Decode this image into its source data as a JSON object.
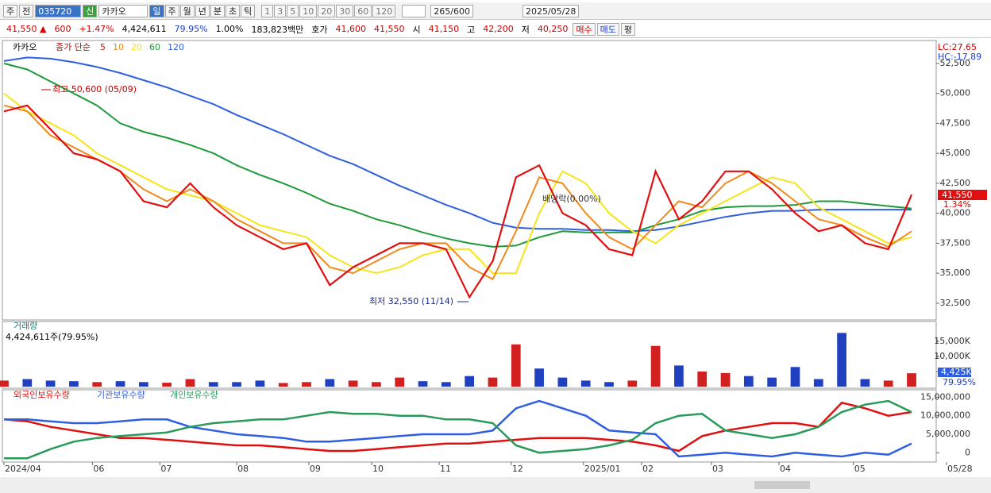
{
  "toolbar": {
    "period": "주",
    "prev": "전",
    "code": "035720",
    "credit": "신",
    "name": "카카오",
    "intervals": [
      "일",
      "주",
      "월",
      "년",
      "분",
      "초",
      "틱"
    ],
    "counts": [
      "1",
      "3",
      "5",
      "10",
      "20",
      "30",
      "60",
      "120"
    ],
    "bars": "265",
    "bars_max": "/600",
    "date": "2025/05/28"
  },
  "info_bar": {
    "price": "41,550 ▲",
    "change": "600",
    "change_rate": "+1.47%",
    "volume": "4,424,611",
    "volume_rate": "79.95%",
    "rate2": "1.00%",
    "amount": "183,823백만",
    "quote_label": "호가",
    "ask": "41,600",
    "bid": "41,550",
    "open_label": "시",
    "open": "41,150",
    "high_label": "고",
    "high": "42,200",
    "low_label": "저",
    "low": "40,250",
    "buy": "매수",
    "sell": "매도",
    "avg": "평"
  },
  "chart_data": [
    {
      "type": "line",
      "title": "카카오",
      "subtitle": "종가 단순",
      "ylim": [
        31100,
        54150
      ],
      "yticks": [
        {
          "value": 32500,
          "label": "32,500"
        },
        {
          "value": 35000,
          "label": "35,000"
        },
        {
          "value": 37500,
          "label": "37,500"
        },
        {
          "value": 40000,
          "label": "40,000"
        },
        {
          "value": 42500,
          "label": "42,500"
        },
        {
          "value": 45000,
          "label": "45,000"
        },
        {
          "value": 47500,
          "label": "47,500"
        },
        {
          "value": 50000,
          "label": "50,000"
        },
        {
          "value": 52500,
          "label": "52,500"
        }
      ],
      "series": [
        {
          "name": "5",
          "color": "#e01010",
          "values": [
            48500,
            49000,
            47000,
            45000,
            44500,
            43500,
            41000,
            40500,
            42500,
            40500,
            39000,
            38000,
            37000,
            37500,
            34000,
            35500,
            36500,
            37500,
            37500,
            37000,
            33000,
            36000,
            43000,
            44000,
            40000,
            39000,
            37000,
            36500,
            43500,
            39500,
            41000,
            43500,
            43500,
            42000,
            40000,
            38500,
            39000,
            37500,
            37000,
            41550
          ]
        },
        {
          "name": "10",
          "color": "#f08a1c",
          "values": [
            49000,
            48500,
            46500,
            45500,
            44500,
            43500,
            42000,
            41000,
            42000,
            41000,
            39500,
            38500,
            37500,
            37500,
            35500,
            35000,
            36000,
            37000,
            37500,
            37500,
            35500,
            34500,
            38500,
            43000,
            42500,
            40000,
            38000,
            37000,
            39000,
            41000,
            40500,
            42500,
            43500,
            42500,
            41000,
            39500,
            39000,
            38000,
            37200,
            38500
          ]
        },
        {
          "name": "20",
          "color": "#f5e51a",
          "values": [
            50000,
            48500,
            47500,
            46500,
            45000,
            44000,
            43000,
            42000,
            41500,
            41000,
            40000,
            39000,
            38500,
            38000,
            36500,
            35500,
            35000,
            35500,
            36500,
            37000,
            37000,
            35000,
            35000,
            40000,
            43500,
            42500,
            40000,
            38500,
            37500,
            39000,
            40000,
            41000,
            42000,
            43000,
            42500,
            40500,
            39500,
            38500,
            37500,
            38000
          ]
        },
        {
          "name": "60",
          "color": "#1f9a3a",
          "values": [
            52500,
            52000,
            51000,
            50000,
            49000,
            47500,
            46800,
            46300,
            45700,
            45000,
            44000,
            43200,
            42500,
            41700,
            40800,
            40200,
            39500,
            39000,
            38400,
            37900,
            37500,
            37200,
            37300,
            38000,
            38500,
            38400,
            38400,
            38400,
            39000,
            39500,
            40200,
            40500,
            40600,
            40600,
            40700,
            41000,
            41000,
            40800,
            40600,
            40400
          ]
        },
        {
          "name": "120",
          "color": "#2f5fe0",
          "values": [
            52700,
            53000,
            52900,
            52600,
            52200,
            51700,
            51100,
            50500,
            49800,
            49100,
            48200,
            47400,
            46600,
            45700,
            44800,
            44100,
            43200,
            42300,
            41500,
            40700,
            40000,
            39200,
            38800,
            38700,
            38700,
            38600,
            38600,
            38500,
            38600,
            38900,
            39300,
            39700,
            40000,
            40200,
            40200,
            40300,
            40300,
            40300,
            40300,
            40300
          ]
        }
      ],
      "annotations": [
        "최고 50,600 (05/09)",
        "최저 32,550 (11/14)",
        "배당락(0.00%)"
      ],
      "lc": "LC:27.65",
      "hc": "HC:-17.89",
      "last_price": "41,550",
      "last_change": "1.34%"
    },
    {
      "type": "bar",
      "title": "거래량",
      "subtitle": "4,424,611주(79.95%)",
      "ylim": [
        0,
        18000
      ],
      "yticks": [
        {
          "value": 5000,
          "label": "5,000K"
        },
        {
          "value": 10000,
          "label": "10,000K"
        },
        {
          "value": 15000,
          "label": "15,000K"
        }
      ],
      "values": [
        2000,
        2500,
        2000,
        1800,
        1500,
        1800,
        1500,
        1300,
        2500,
        1500,
        1500,
        2000,
        1200,
        1500,
        2500,
        2000,
        1500,
        3000,
        1800,
        1500,
        3500,
        3000,
        14000,
        6000,
        3000,
        2000,
        1500,
        2000,
        13500,
        7000,
        5000,
        4500,
        3500,
        3000,
        6500,
        2500,
        17800,
        2500,
        2000,
        4425
      ],
      "colors": [
        "#d02020",
        "#2040c0",
        "#2040c0",
        "#2040c0",
        "#d02020",
        "#2040c0",
        "#2040c0",
        "#d02020",
        "#d02020",
        "#2040c0",
        "#2040c0",
        "#2040c0",
        "#d02020",
        "#d02020",
        "#2040c0",
        "#d02020",
        "#d02020",
        "#d02020",
        "#2040c0",
        "#2040c0",
        "#2040c0",
        "#d02020",
        "#d02020",
        "#2040c0",
        "#2040c0",
        "#2040c0",
        "#2040c0",
        "#d02020",
        "#d02020",
        "#2040c0",
        "#d02020",
        "#d02020",
        "#2040c0",
        "#2040c0",
        "#2040c0",
        "#2040c0",
        "#2040c0",
        "#2040c0",
        "#d02020",
        "#d02020"
      ],
      "last_value": "4,425K",
      "last_rate": "79.95%"
    },
    {
      "type": "line",
      "ylim": [
        -2500000,
        16700000
      ],
      "yticks": [
        0,
        {
          "value": 5000000,
          "label": "5,000,000"
        },
        {
          "value": 10000000,
          "label": "10,000,000"
        },
        {
          "value": 15000000,
          "label": "15,000,000"
        }
      ],
      "xlim": [
        0,
        39
      ],
      "xticks": [
        {
          "value": 0,
          "label": "2024/04"
        },
        {
          "value": 3.8,
          "label": "06"
        },
        {
          "value": 6.7,
          "label": "07"
        },
        {
          "value": 10,
          "label": "08"
        },
        {
          "value": 13.1,
          "label": "09"
        },
        {
          "value": 15.8,
          "label": "10"
        },
        {
          "value": 18.7,
          "label": "11"
        },
        {
          "value": 21.8,
          "label": "12"
        },
        {
          "value": 24.9,
          "label": "2025/01"
        },
        {
          "value": 27.4,
          "label": "02"
        },
        {
          "value": 30.4,
          "label": "03"
        },
        {
          "value": 33.3,
          "label": "04"
        },
        {
          "value": 36.5,
          "label": "05"
        },
        {
          "value": 40.5,
          "label": "05/28"
        }
      ],
      "series": [
        {
          "name": "외국인보유수량",
          "color": "#e01010",
          "values": [
            9000000,
            8500000,
            7000000,
            6000000,
            5000000,
            4000000,
            4000000,
            3500000,
            3000000,
            2500000,
            2000000,
            2000000,
            1500000,
            1000000,
            500000,
            500000,
            1000000,
            1500000,
            2000000,
            2500000,
            2500000,
            3000000,
            3500000,
            4000000,
            4000000,
            4000000,
            3500000,
            3000000,
            2000000,
            500000,
            4500000,
            6000000,
            7000000,
            8000000,
            8000000,
            7000000,
            13500000,
            12000000,
            10000000,
            11000000
          ]
        },
        {
          "name": "기관보유수량",
          "color": "#2f5fe0",
          "values": [
            9000000,
            9000000,
            8500000,
            8000000,
            8000000,
            8500000,
            9000000,
            9000000,
            7000000,
            6000000,
            5000000,
            4500000,
            4000000,
            3000000,
            3000000,
            3500000,
            4000000,
            4500000,
            5000000,
            5000000,
            5000000,
            6000000,
            12000000,
            14000000,
            12000000,
            10000000,
            6000000,
            5500000,
            5000000,
            -1000000,
            -500000,
            0,
            -500000,
            -1000000,
            0,
            -500000,
            -1000000,
            0,
            -500000,
            2500000
          ]
        },
        {
          "name": "개인보유수량",
          "color": "#2a9a5a",
          "values": [
            -1500000,
            -1500000,
            1000000,
            3000000,
            4000000,
            4500000,
            5000000,
            5500000,
            7000000,
            8000000,
            8500000,
            9000000,
            9000000,
            10000000,
            11000000,
            10500000,
            10500000,
            10000000,
            10000000,
            9000000,
            9000000,
            8000000,
            2000000,
            0,
            500000,
            1000000,
            2000000,
            3500000,
            8000000,
            10000000,
            10500000,
            6000000,
            5000000,
            4000000,
            5000000,
            7000000,
            11000000,
            13000000,
            14000000,
            11000000
          ]
        }
      ]
    }
  ]
}
